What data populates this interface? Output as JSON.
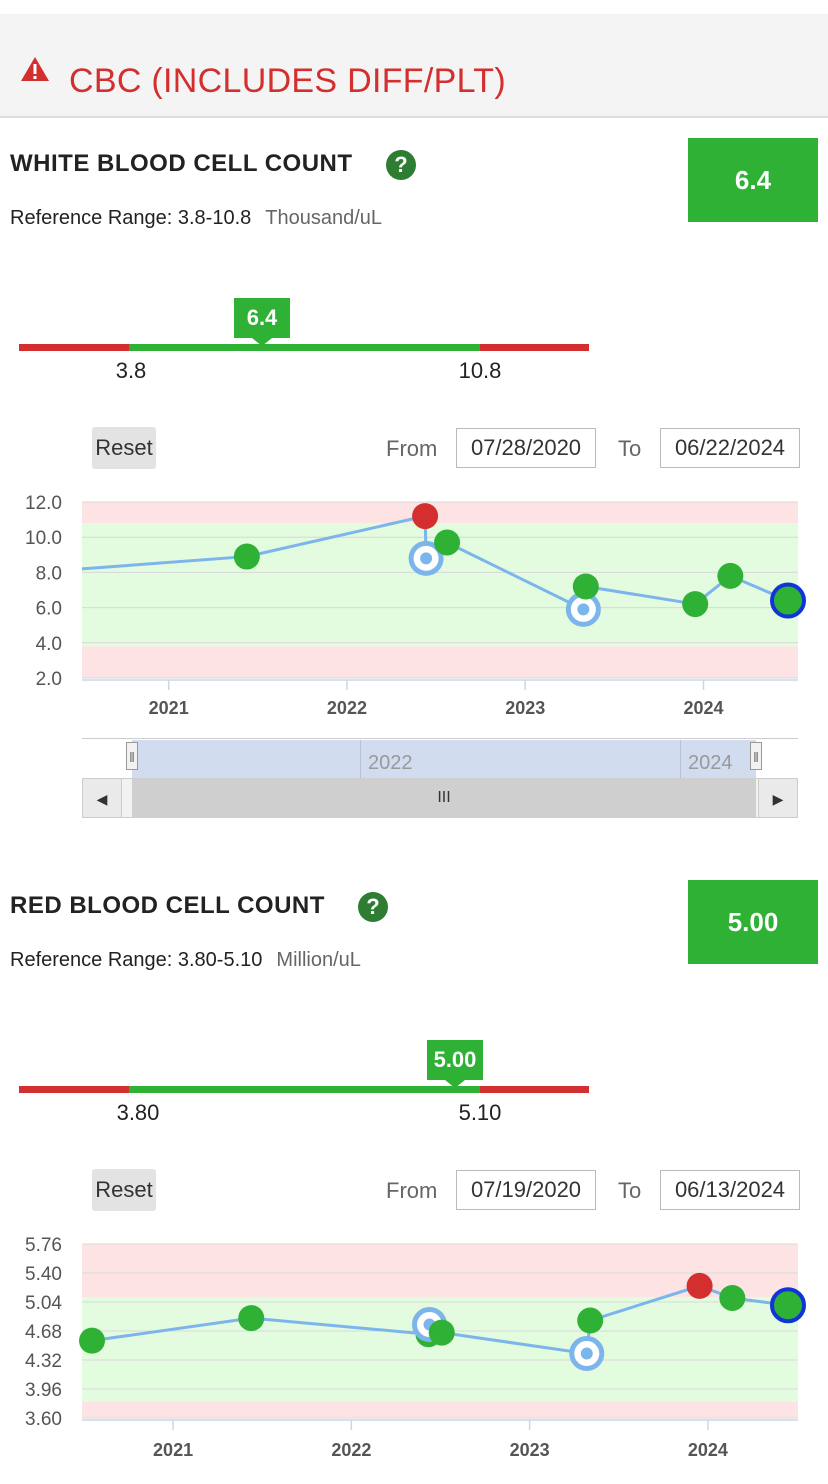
{
  "header": {
    "title": "CBC (INCLUDES DIFF/PLT)"
  },
  "charts": [
    {
      "title": "WHITE BLOOD CELL COUNT",
      "help": "?",
      "ref_label": "Reference Range: 3.8-10.8",
      "unit": "Thousand/uL",
      "value": "6.4",
      "range_low": "3.8",
      "range_high": "10.8",
      "reset": "Reset",
      "from_label": "From",
      "from_date": "07/28/2020",
      "to_label": "To",
      "to_date": "06/22/2024",
      "navigator_labels": [
        "2022",
        "2024"
      ]
    },
    {
      "title": "RED BLOOD CELL COUNT",
      "help": "?",
      "ref_label": "Reference Range: 3.80-5.10",
      "unit": "Million/uL",
      "value": "5.00",
      "range_low": "3.80",
      "range_high": "5.10",
      "reset": "Reset",
      "from_label": "From",
      "from_date": "07/19/2020",
      "to_label": "To",
      "to_date": "06/13/2024"
    }
  ],
  "colors": {
    "normal": "#2eb135",
    "abnormal": "#d32f2f",
    "line": "#7cb5ec",
    "hollow": "#7cb5ec",
    "latest_ring": "#1034d9",
    "band_red": "#fde3e4",
    "band_green": "#e3fbdf"
  },
  "chart_data": [
    {
      "type": "line",
      "title": "WHITE BLOOD CELL COUNT",
      "ylim": [
        2.0,
        12.0
      ],
      "yticks": [
        "12.0",
        "10.0",
        "8.0",
        "6.0",
        "4.0",
        "2.0"
      ],
      "ytick_values": [
        12,
        10,
        8,
        6,
        4,
        2
      ],
      "xticks": [
        "2021",
        "2022",
        "2023",
        "2024"
      ],
      "xrange": [
        "2020-07-28",
        "2024-06-22"
      ],
      "reference_range": [
        3.8,
        10.8
      ],
      "points": [
        {
          "date": "2020-07-28",
          "value": 8.2,
          "kind": "offscreen"
        },
        {
          "date": "2021-06-10",
          "value": 8.9,
          "kind": "normal"
        },
        {
          "date": "2022-06-10",
          "value": 11.2,
          "kind": "abnormal"
        },
        {
          "date": "2022-06-12",
          "value": 8.8,
          "kind": "hollow"
        },
        {
          "date": "2022-07-25",
          "value": 9.7,
          "kind": "normal"
        },
        {
          "date": "2023-04-30",
          "value": 5.9,
          "kind": "hollow"
        },
        {
          "date": "2023-05-05",
          "value": 7.2,
          "kind": "normal"
        },
        {
          "date": "2023-12-15",
          "value": 6.2,
          "kind": "normal"
        },
        {
          "date": "2024-02-25",
          "value": 7.8,
          "kind": "normal"
        },
        {
          "date": "2024-06-22",
          "value": 6.4,
          "kind": "latest"
        }
      ]
    },
    {
      "type": "line",
      "title": "RED BLOOD CELL COUNT",
      "ylim": [
        3.6,
        5.76
      ],
      "yticks": [
        "5.76",
        "5.40",
        "5.04",
        "4.68",
        "4.32",
        "3.96",
        "3.60"
      ],
      "ytick_values": [
        5.76,
        5.4,
        5.04,
        4.68,
        4.32,
        3.96,
        3.6
      ],
      "xticks": [
        "2021",
        "2022",
        "2023",
        "2024"
      ],
      "xrange": [
        "2020-07-19",
        "2024-06-13"
      ],
      "reference_range": [
        3.8,
        5.1
      ],
      "points": [
        {
          "date": "2020-07-19",
          "value": 4.56,
          "kind": "normal"
        },
        {
          "date": "2021-06-10",
          "value": 4.84,
          "kind": "normal"
        },
        {
          "date": "2022-06-08",
          "value": 4.64,
          "kind": "normal"
        },
        {
          "date": "2022-06-10",
          "value": 4.76,
          "kind": "hollow"
        },
        {
          "date": "2022-07-05",
          "value": 4.66,
          "kind": "normal"
        },
        {
          "date": "2023-04-28",
          "value": 4.4,
          "kind": "hollow"
        },
        {
          "date": "2023-05-05",
          "value": 4.81,
          "kind": "normal"
        },
        {
          "date": "2023-12-15",
          "value": 5.24,
          "kind": "abnormal"
        },
        {
          "date": "2024-02-20",
          "value": 5.09,
          "kind": "normal"
        },
        {
          "date": "2024-06-13",
          "value": 5.0,
          "kind": "latest"
        }
      ]
    }
  ]
}
